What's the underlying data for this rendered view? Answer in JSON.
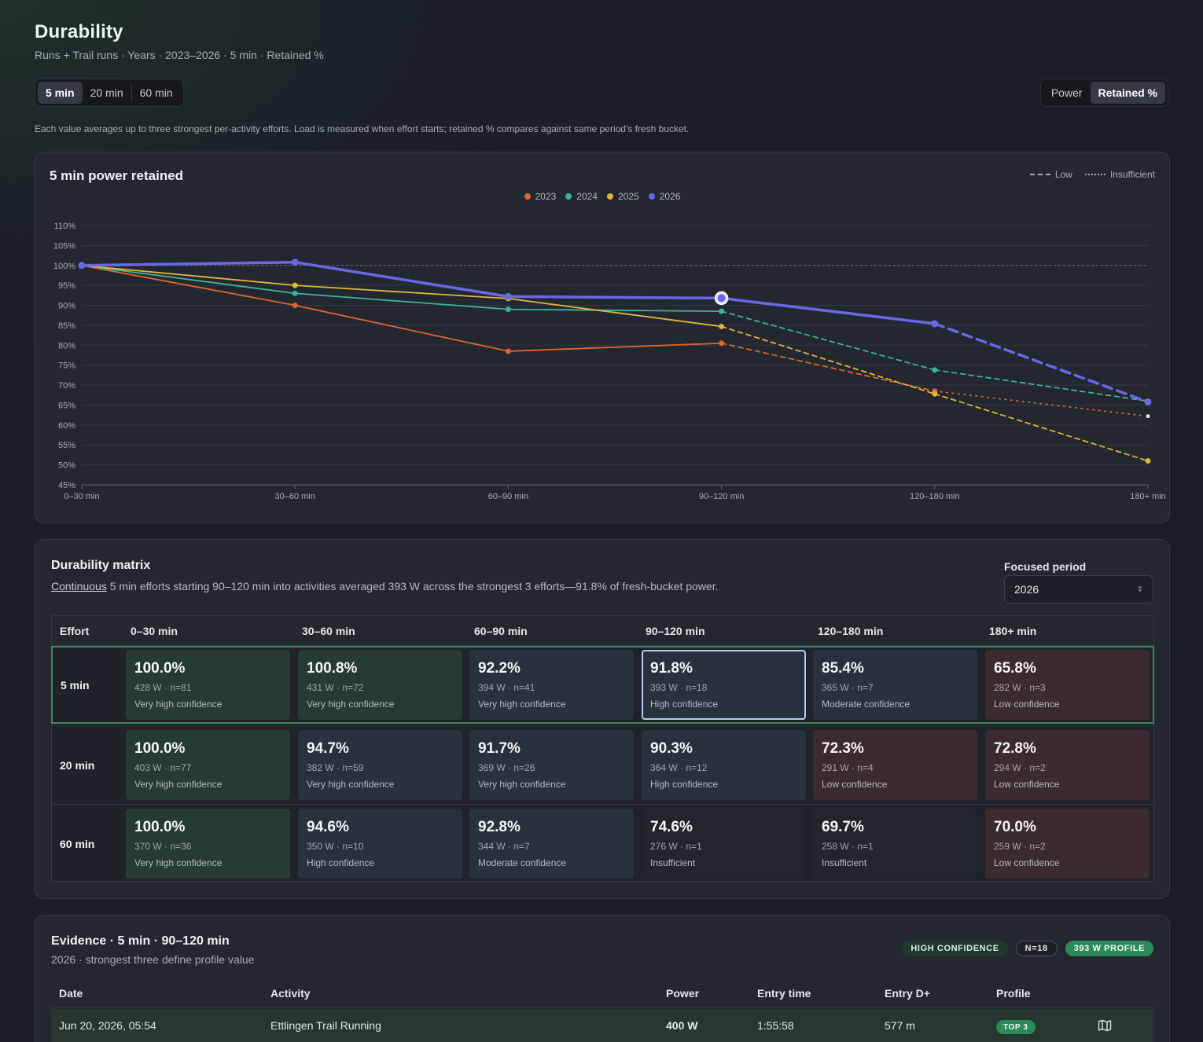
{
  "header": {
    "title": "Durability",
    "subtitle": "Runs + Trail runs · Years · 2023–2026 · 5 min · Retained %"
  },
  "window_options": [
    "5 min",
    "20 min",
    "60 min"
  ],
  "window_selected": "5 min",
  "metric_options": [
    "Power",
    "Retained %"
  ],
  "metric_selected": "Retained %",
  "note": "Each value averages up to three strongest per-activity efforts. Load is measured when effort starts; retained % compares against same period's fresh bucket.",
  "chart_card": {
    "title": "5 min power retained",
    "style_legend": {
      "low": "Low",
      "insufficient": "Insufficient"
    }
  },
  "chart_data": {
    "type": "line",
    "title": "5 min power retained",
    "categories": [
      "0–30 min",
      "30–60 min",
      "60–90 min",
      "90–120 min",
      "120–180 min",
      "180+ min"
    ],
    "ylim": [
      45,
      110
    ],
    "yticks": [
      45,
      50,
      55,
      60,
      65,
      70,
      75,
      80,
      85,
      90,
      95,
      100,
      105,
      110
    ],
    "ytick_suffix": "%",
    "reference_line": 100,
    "grid": true,
    "legend_position": "top-center",
    "highlight": {
      "series": "2026",
      "category": "90–120 min"
    },
    "series": [
      {
        "name": "2023",
        "color": "#e0652f",
        "values": [
          100,
          90,
          78.5,
          80.5,
          68.5,
          62.2
        ],
        "styles": [
          "solid",
          "solid",
          "solid",
          "dashed",
          "dotted"
        ]
      },
      {
        "name": "2024",
        "color": "#3fb39a",
        "values": [
          100,
          93,
          89,
          88.5,
          73.8,
          66
        ],
        "styles": [
          "solid",
          "solid",
          "solid",
          "dashed",
          "dashed"
        ]
      },
      {
        "name": "2025",
        "color": "#e0b63a",
        "values": [
          100,
          95,
          91.7,
          84.7,
          67.8,
          51
        ],
        "styles": [
          "solid",
          "solid",
          "solid",
          "dashed",
          "dashed"
        ]
      },
      {
        "name": "2026",
        "color": "#6b68e8",
        "values": [
          100,
          100.8,
          92.2,
          91.8,
          85.4,
          65.8
        ],
        "styles": [
          "solid",
          "solid",
          "solid",
          "solid",
          "dashed"
        ]
      }
    ]
  },
  "matrix": {
    "title": "Durability matrix",
    "summary_link": "Continuous",
    "summary_rest": " 5 min efforts starting 90–120 min into activities averaged 393 W across the strongest 3 efforts—91.8% of fresh-bucket power.",
    "focused_period_label": "Focused period",
    "focused_period_value": "2026",
    "header": [
      "Effort",
      "0–30 min",
      "30–60 min",
      "60–90 min",
      "90–120 min",
      "120–180 min",
      "180+ min"
    ],
    "rows": [
      {
        "label": "5 min",
        "cells": [
          {
            "value": "100.0%",
            "detail": "428 W · n=81",
            "confidence": "Very high confidence",
            "tone": "fresh"
          },
          {
            "value": "100.8%",
            "detail": "431 W · n=72",
            "confidence": "Very high confidence",
            "tone": "fresh"
          },
          {
            "value": "92.2%",
            "detail": "394 W · n=41",
            "confidence": "Very high confidence",
            "tone": "good"
          },
          {
            "value": "91.8%",
            "detail": "393 W · n=18",
            "confidence": "High confidence",
            "tone": "good"
          },
          {
            "value": "85.4%",
            "detail": "365 W · n=7",
            "confidence": "Moderate confidence",
            "tone": "good"
          },
          {
            "value": "65.8%",
            "detail": "282 W · n=3",
            "confidence": "Low confidence",
            "tone": "low"
          }
        ]
      },
      {
        "label": "20 min",
        "cells": [
          {
            "value": "100.0%",
            "detail": "403 W · n=77",
            "confidence": "Very high confidence",
            "tone": "fresh"
          },
          {
            "value": "94.7%",
            "detail": "382 W · n=59",
            "confidence": "Very high confidence",
            "tone": "good"
          },
          {
            "value": "91.7%",
            "detail": "369 W · n=26",
            "confidence": "Very high confidence",
            "tone": "good"
          },
          {
            "value": "90.3%",
            "detail": "364 W · n=12",
            "confidence": "High confidence",
            "tone": "good"
          },
          {
            "value": "72.3%",
            "detail": "291 W · n=4",
            "confidence": "Low confidence",
            "tone": "low"
          },
          {
            "value": "72.8%",
            "detail": "294 W · n=2",
            "confidence": "Low confidence",
            "tone": "low"
          }
        ]
      },
      {
        "label": "60 min",
        "cells": [
          {
            "value": "100.0%",
            "detail": "370 W · n=36",
            "confidence": "Very high confidence",
            "tone": "fresh"
          },
          {
            "value": "94.6%",
            "detail": "350 W · n=10",
            "confidence": "High confidence",
            "tone": "good"
          },
          {
            "value": "92.8%",
            "detail": "344 W · n=7",
            "confidence": "Moderate confidence",
            "tone": "good"
          },
          {
            "value": "74.6%",
            "detail": "276 W · n=1",
            "confidence": "Insufficient",
            "tone": "insuf"
          },
          {
            "value": "69.7%",
            "detail": "258 W · n=1",
            "confidence": "Insufficient",
            "tone": "insuf"
          },
          {
            "value": "70.0%",
            "detail": "259 W · n=2",
            "confidence": "Low confidence",
            "tone": "low"
          }
        ]
      }
    ]
  },
  "evidence": {
    "title": "Evidence · 5 min · 90–120 min",
    "subtitle": "2026 · strongest three define profile value",
    "badges": [
      "HIGH CONFIDENCE",
      "N=18",
      "393 W PROFILE"
    ],
    "columns": [
      "Date",
      "Activity",
      "Power",
      "Entry time",
      "Entry D+",
      "Profile"
    ],
    "rows": [
      {
        "date": "Jun 20, 2026, 05:54",
        "activity": "Ettlingen Trail Running",
        "power": "400 W",
        "entry_time": "1:55:58",
        "entry_dplus": "577 m",
        "profile": "TOP 3",
        "action_icon": "map-icon"
      }
    ]
  }
}
